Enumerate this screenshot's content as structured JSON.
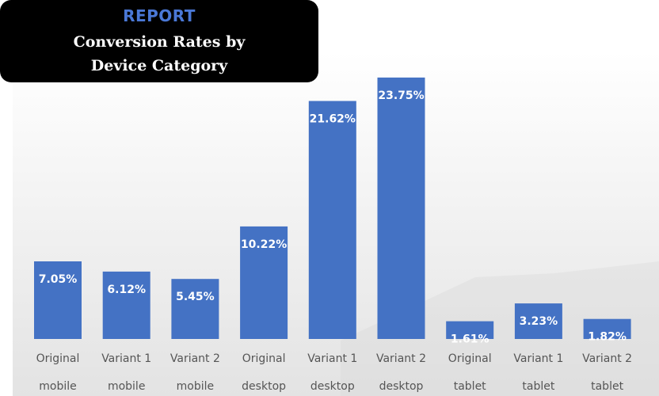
{
  "header": {
    "tag": "REPORT",
    "title_line1": "Conversion Rates by",
    "title_line2": "Device Category"
  },
  "chart_data": {
    "type": "bar",
    "title": "Conversion Rates by Device Category",
    "categories": [
      [
        "Original",
        "mobile"
      ],
      [
        "Variant 1",
        "mobile"
      ],
      [
        "Variant 2",
        "mobile"
      ],
      [
        "Original",
        "desktop"
      ],
      [
        "Variant 1",
        "desktop"
      ],
      [
        "Variant 2",
        "desktop"
      ],
      [
        "Original",
        "tablet"
      ],
      [
        "Variant 1",
        "tablet"
      ],
      [
        "Variant 2",
        "tablet"
      ]
    ],
    "values": [
      7.05,
      6.12,
      5.45,
      10.22,
      21.62,
      23.75,
      1.61,
      3.23,
      1.82
    ],
    "data_labels": [
      "7.05%",
      "6.12%",
      "5.45%",
      "10.22%",
      "21.62%",
      "23.75%",
      "1.61%",
      "3.23%",
      "1.82%"
    ],
    "unit": "%",
    "bar_color": "#4472c4",
    "grid": false,
    "legend": "none"
  }
}
